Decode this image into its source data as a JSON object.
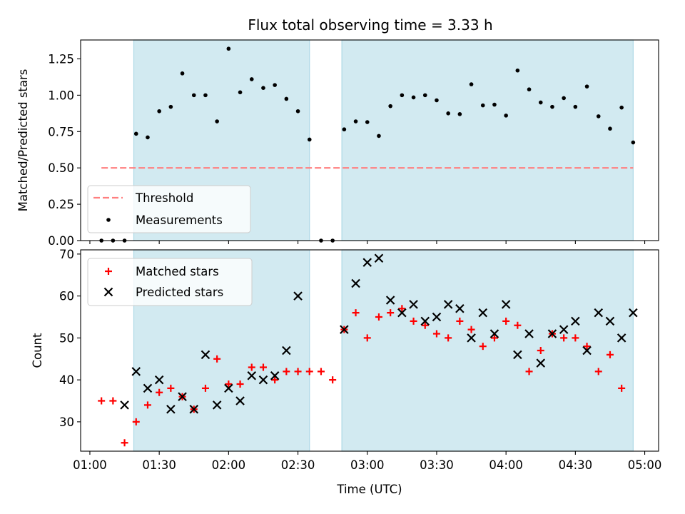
{
  "chart_data": {
    "title": "Flux total observing time = 3.33 h",
    "xlabel": "Time (UTC)",
    "x_ticks": [
      "01:00",
      "01:30",
      "02:00",
      "02:30",
      "03:00",
      "03:30",
      "04:00",
      "04:30",
      "05:00"
    ],
    "x_range_minutes": [
      56,
      306
    ],
    "colors": {
      "shade": "#add8e6",
      "threshold": "#ff7f7f",
      "matched": "#ff0000",
      "predicted": "#000000",
      "measurement": "#000000"
    },
    "shaded_intervals_minutes": [
      [
        79,
        155
      ],
      [
        169,
        295
      ]
    ],
    "panels": [
      {
        "type": "scatter",
        "ylabel": "Matched/Predicted stars",
        "ylim": [
          0,
          1.38
        ],
        "y_ticks": [
          "0.00",
          "0.25",
          "0.50",
          "0.75",
          "1.00",
          "1.25"
        ],
        "threshold": {
          "label": "Threshold",
          "value": 0.5,
          "x_start": 65,
          "x_end": 295
        },
        "measurements": {
          "label": "Measurements",
          "points": [
            [
              65,
              0.0
            ],
            [
              70,
              0.0
            ],
            [
              75,
              0.0
            ],
            [
              80,
              0.735
            ],
            [
              85,
              0.71
            ],
            [
              90,
              0.89
            ],
            [
              95,
              0.92
            ],
            [
              100,
              1.15
            ],
            [
              105,
              1.0
            ],
            [
              110,
              1.0
            ],
            [
              115,
              0.82
            ],
            [
              120,
              1.32
            ],
            [
              125,
              1.02
            ],
            [
              130,
              1.11
            ],
            [
              135,
              1.05
            ],
            [
              140,
              1.07
            ],
            [
              145,
              0.975
            ],
            [
              150,
              0.89
            ],
            [
              155,
              0.695
            ],
            [
              160,
              0.0
            ],
            [
              165,
              0.0
            ],
            [
              170,
              0.765
            ],
            [
              175,
              0.82
            ],
            [
              180,
              0.815
            ],
            [
              185,
              0.72
            ],
            [
              190,
              0.925
            ],
            [
              195,
              1.0
            ],
            [
              200,
              0.985
            ],
            [
              205,
              1.0
            ],
            [
              210,
              0.965
            ],
            [
              215,
              0.875
            ],
            [
              220,
              0.87
            ],
            [
              225,
              1.075
            ],
            [
              230,
              0.93
            ],
            [
              235,
              0.935
            ],
            [
              240,
              0.86
            ],
            [
              245,
              1.17
            ],
            [
              250,
              1.04
            ],
            [
              255,
              0.95
            ],
            [
              260,
              0.92
            ],
            [
              265,
              0.98
            ],
            [
              270,
              0.92
            ],
            [
              275,
              1.06
            ],
            [
              280,
              0.855
            ],
            [
              285,
              0.77
            ],
            [
              290,
              0.915
            ],
            [
              295,
              0.675
            ]
          ]
        }
      },
      {
        "type": "scatter",
        "ylabel": "Count",
        "ylim": [
          23,
          71
        ],
        "y_ticks": [
          "30",
          "40",
          "50",
          "60",
          "70"
        ],
        "series": [
          {
            "name": "Matched stars",
            "marker": "plus",
            "points": [
              [
                65,
                35
              ],
              [
                70,
                35
              ],
              [
                75,
                25
              ],
              [
                80,
                30
              ],
              [
                85,
                34
              ],
              [
                90,
                37
              ],
              [
                95,
                38
              ],
              [
                100,
                36
              ],
              [
                105,
                33
              ],
              [
                110,
                38
              ],
              [
                115,
                45
              ],
              [
                120,
                39
              ],
              [
                125,
                39
              ],
              [
                130,
                43
              ],
              [
                135,
                43
              ],
              [
                140,
                40
              ],
              [
                145,
                42
              ],
              [
                150,
                42
              ],
              [
                155,
                42
              ],
              [
                160,
                42
              ],
              [
                165,
                40
              ],
              [
                170,
                52
              ],
              [
                175,
                56
              ],
              [
                180,
                50
              ],
              [
                185,
                55
              ],
              [
                190,
                56
              ],
              [
                195,
                57
              ],
              [
                200,
                54
              ],
              [
                205,
                53
              ],
              [
                210,
                51
              ],
              [
                215,
                50
              ],
              [
                220,
                54
              ],
              [
                225,
                52
              ],
              [
                230,
                48
              ],
              [
                235,
                50
              ],
              [
                240,
                54
              ],
              [
                245,
                53
              ],
              [
                250,
                42
              ],
              [
                255,
                47
              ],
              [
                260,
                51
              ],
              [
                265,
                50
              ],
              [
                270,
                50
              ],
              [
                275,
                48
              ],
              [
                280,
                42
              ],
              [
                285,
                46
              ],
              [
                290,
                38
              ]
            ]
          },
          {
            "name": "Predicted stars",
            "marker": "x",
            "points": [
              [
                75,
                34
              ],
              [
                80,
                42
              ],
              [
                85,
                38
              ],
              [
                90,
                40
              ],
              [
                95,
                33
              ],
              [
                100,
                36
              ],
              [
                105,
                33
              ],
              [
                110,
                46
              ],
              [
                115,
                34
              ],
              [
                120,
                38
              ],
              [
                125,
                35
              ],
              [
                130,
                41
              ],
              [
                135,
                40
              ],
              [
                140,
                41
              ],
              [
                145,
                47
              ],
              [
                150,
                60
              ],
              [
                170,
                52
              ],
              [
                175,
                63
              ],
              [
                180,
                68
              ],
              [
                185,
                69
              ],
              [
                190,
                59
              ],
              [
                195,
                56
              ],
              [
                200,
                58
              ],
              [
                205,
                54
              ],
              [
                210,
                55
              ],
              [
                215,
                58
              ],
              [
                220,
                57
              ],
              [
                225,
                50
              ],
              [
                230,
                56
              ],
              [
                235,
                51
              ],
              [
                240,
                58
              ],
              [
                245,
                46
              ],
              [
                250,
                51
              ],
              [
                255,
                44
              ],
              [
                260,
                51
              ],
              [
                265,
                52
              ],
              [
                270,
                54
              ],
              [
                275,
                47
              ],
              [
                280,
                56
              ],
              [
                285,
                54
              ],
              [
                290,
                50
              ],
              [
                295,
                56
              ]
            ]
          }
        ]
      }
    ]
  }
}
